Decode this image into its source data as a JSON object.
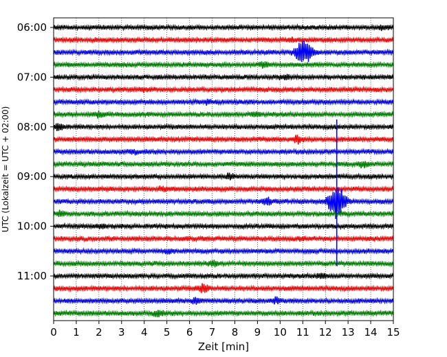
{
  "chart_data": {
    "type": "line",
    "title": "",
    "xlabel": "Zeit  [min]",
    "ylabel": "UTC (Lokalzeit = UTC + 02:00)",
    "xlim": [
      0,
      15
    ],
    "x_ticks": [
      "0",
      "1",
      "2",
      "3",
      "4",
      "5",
      "6",
      "7",
      "8",
      "9",
      "10",
      "11",
      "12",
      "13",
      "14",
      "15"
    ],
    "y_tick_labels": [
      "06:00",
      "07:00",
      "08:00",
      "09:00",
      "10:00",
      "11:00"
    ],
    "grid": "vertical-dotted",
    "line_minutes_per_row": 15,
    "row_colors": [
      "#000000",
      "#ff0000",
      "#0000ff",
      "#008000"
    ],
    "rows": [
      {
        "start": "06:00",
        "color": "#000000",
        "events": [
          {
            "t": 14.6,
            "amp": 0.35
          }
        ]
      },
      {
        "start": "06:15",
        "color": "#ff0000",
        "events": [
          {
            "t": 10.5,
            "amp": 0.25
          }
        ]
      },
      {
        "start": "06:30",
        "color": "#0000ff",
        "events": [
          {
            "t": 11.05,
            "amp": 1.7
          }
        ]
      },
      {
        "start": "06:45",
        "color": "#008000",
        "events": [
          {
            "t": 9.3,
            "amp": 0.3
          }
        ]
      },
      {
        "start": "07:00",
        "color": "#000000",
        "events": [
          {
            "t": 10.2,
            "amp": 0.3
          }
        ]
      },
      {
        "start": "07:15",
        "color": "#ff0000",
        "events": [
          {
            "t": 4.0,
            "amp": 0.25
          }
        ]
      },
      {
        "start": "07:30",
        "color": "#0000ff",
        "events": [
          {
            "t": 6.8,
            "amp": 0.3
          }
        ]
      },
      {
        "start": "07:45",
        "color": "#008000",
        "events": [
          {
            "t": 2.0,
            "amp": 0.3
          },
          {
            "t": 8.9,
            "amp": 0.35
          }
        ]
      },
      {
        "start": "08:00",
        "color": "#000000",
        "events": [
          {
            "t": 0.2,
            "amp": 0.4
          }
        ]
      },
      {
        "start": "08:15",
        "color": "#ff0000",
        "events": [
          {
            "t": 10.8,
            "amp": 0.5
          }
        ]
      },
      {
        "start": "08:30",
        "color": "#0000ff",
        "events": [
          {
            "t": 3.5,
            "amp": 0.25
          }
        ]
      },
      {
        "start": "08:45",
        "color": "#008000",
        "events": [
          {
            "t": 13.7,
            "amp": 0.45
          }
        ]
      },
      {
        "start": "09:00",
        "color": "#000000",
        "events": [
          {
            "t": 7.8,
            "amp": 0.4
          }
        ]
      },
      {
        "start": "09:15",
        "color": "#ff0000",
        "events": [
          {
            "t": 4.8,
            "amp": 0.3
          }
        ]
      },
      {
        "start": "09:30",
        "color": "#0000ff",
        "events": [
          {
            "t": 9.4,
            "amp": 0.55
          },
          {
            "t": 12.5,
            "amp": 2.6
          }
        ]
      },
      {
        "start": "09:45",
        "color": "#008000",
        "events": [
          {
            "t": 0.3,
            "amp": 0.3
          }
        ]
      },
      {
        "start": "10:00",
        "color": "#000000",
        "events": [
          {
            "t": 2.1,
            "amp": 0.3
          }
        ]
      },
      {
        "start": "10:15",
        "color": "#ff0000",
        "events": [
          {
            "t": 11.0,
            "amp": 0.2
          }
        ]
      },
      {
        "start": "10:30",
        "color": "#0000ff",
        "events": [
          {
            "t": 5.0,
            "amp": 0.25
          }
        ]
      },
      {
        "start": "10:45",
        "color": "#008000",
        "events": [
          {
            "t": 7.1,
            "amp": 0.3
          }
        ]
      },
      {
        "start": "11:00",
        "color": "#000000",
        "events": [
          {
            "t": 11.8,
            "amp": 0.25
          }
        ]
      },
      {
        "start": "11:15",
        "color": "#ff0000",
        "events": [
          {
            "t": 6.6,
            "amp": 0.6
          }
        ]
      },
      {
        "start": "11:30",
        "color": "#0000ff",
        "events": [
          {
            "t": 6.3,
            "amp": 0.4
          },
          {
            "t": 9.8,
            "amp": 0.35
          }
        ]
      },
      {
        "start": "11:45",
        "color": "#008000",
        "events": [
          {
            "t": 4.6,
            "amp": 0.35
          }
        ]
      }
    ],
    "annotations": [
      {
        "row_start": "08:00",
        "t": 12.5,
        "description": "large vertical spike spanning rows 08:00-10:30",
        "min_row_offset": -0.6,
        "max_row_offset": 11.2
      }
    ]
  }
}
